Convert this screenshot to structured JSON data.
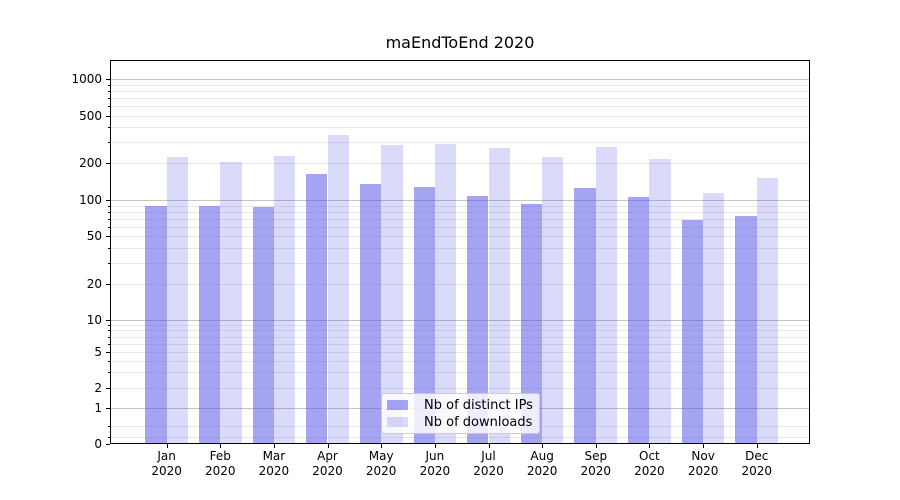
{
  "chart_data": {
    "type": "bar",
    "title": "maEndToEnd 2020",
    "categories": [
      "Jan",
      "Feb",
      "Mar",
      "Apr",
      "May",
      "Jun",
      "Jul",
      "Aug",
      "Sep",
      "Oct",
      "Nov",
      "Dec"
    ],
    "x_tick_year": "2020",
    "series": [
      {
        "name": "Nb of distinct IPs",
        "color_hex": "#a4a4f2",
        "color_rgba": "rgba(80,80,230,0.52)",
        "values": [
          90,
          90,
          88,
          164,
          136,
          127,
          107,
          93,
          126,
          105,
          68,
          74
        ]
      },
      {
        "name": "Nb of downloads",
        "color_hex": "#dadaf9",
        "color_rgba": "rgba(80,80,230,0.21)",
        "values": [
          226,
          205,
          232,
          346,
          287,
          293,
          267,
          225,
          274,
          219,
          114,
          151
        ]
      }
    ],
    "y_axis": {
      "scale": "symlog",
      "tick_labels": [
        "0",
        "1",
        "2",
        "5",
        "10",
        "20",
        "50",
        "100",
        "200",
        "500",
        "1000"
      ],
      "tick_values": [
        0,
        1,
        2,
        5,
        10,
        20,
        50,
        100,
        200,
        500,
        1000
      ],
      "ylim": [
        0,
        1400
      ]
    },
    "grid": true,
    "legend": {
      "position": "lower-center",
      "entries": [
        "Nb of distinct IPs",
        "Nb of downloads"
      ]
    }
  }
}
